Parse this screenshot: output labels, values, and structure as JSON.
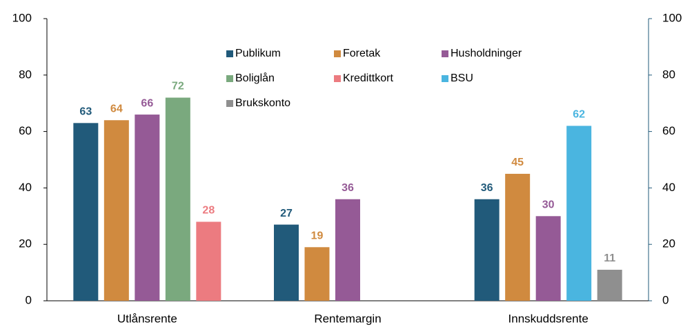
{
  "chart_data": {
    "type": "bar",
    "categories": [
      "Utlånsrente",
      "Rentemargin",
      "Innskuddsrente"
    ],
    "series": [
      {
        "name": "Publikum",
        "color": "#215a7a",
        "values": [
          63,
          27,
          36
        ]
      },
      {
        "name": "Foretak",
        "color": "#d08a3f",
        "values": [
          64,
          19,
          45
        ]
      },
      {
        "name": "Husholdninger",
        "color": "#955a96",
        "values": [
          66,
          36,
          30
        ]
      },
      {
        "name": "Boliglån",
        "color": "#7aa97e",
        "values": [
          72,
          null,
          null
        ]
      },
      {
        "name": "Kredittkort",
        "color": "#ec7b80",
        "values": [
          28,
          null,
          null
        ]
      },
      {
        "name": "BSU",
        "color": "#4ab5e0",
        "values": [
          null,
          null,
          62
        ]
      },
      {
        "name": "Brukskonto",
        "color": "#8f8f8f",
        "values": [
          null,
          null,
          11
        ]
      }
    ],
    "ylim": [
      0,
      100
    ],
    "yticks": [
      0,
      20,
      40,
      60,
      80,
      100
    ],
    "y2lim": [
      0,
      100
    ],
    "y2ticks": [
      0,
      20,
      40,
      60,
      80,
      100
    ],
    "grid": false,
    "legend": "top"
  }
}
